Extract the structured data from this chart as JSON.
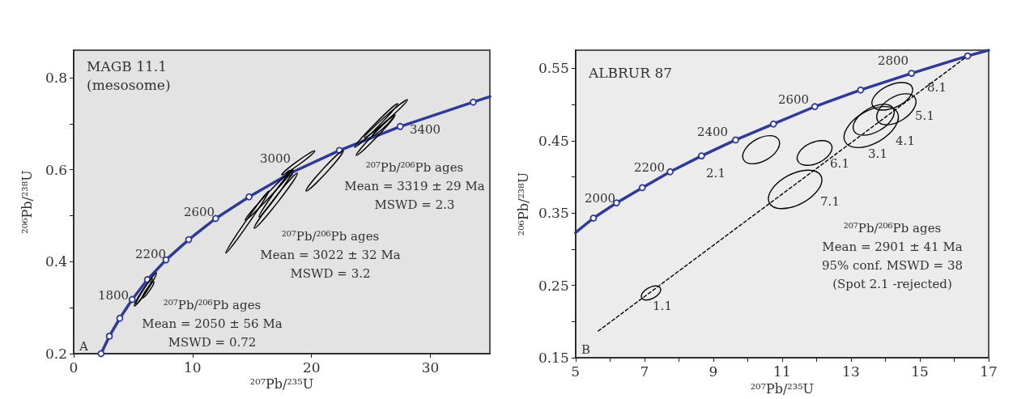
{
  "chart_data": [
    {
      "type": "line",
      "title": "MAGB 11.1",
      "subtitle": "(mesosome)",
      "xlabel": "²⁰⁷Pb/²³⁵U",
      "ylabel": "²⁰⁶Pb/²³⁸U",
      "xlim": [
        0,
        35
      ],
      "ylim": [
        0.2,
        0.86
      ],
      "xticks": [
        0,
        10,
        20,
        30
      ],
      "yticks": [
        0.2,
        {
          "value": 0.3,
          "label": null
        },
        0.4,
        {
          "value": 0.5,
          "label": null
        },
        0.6,
        {
          "value": 0.7,
          "label": null
        },
        0.8
      ],
      "grid": false,
      "series": [
        {
          "color": "#2e3a9a",
          "marker": "none",
          "x": [
            2.3,
            3.0,
            3.88,
            4.92,
            6.2,
            7.76,
            9.67,
            11.94,
            14.75,
            18.17,
            22.35,
            27.46,
            33.6,
            35.0
          ],
          "values": [
            0.2,
            0.238,
            0.277,
            0.318,
            0.361,
            0.404,
            0.448,
            0.494,
            0.541,
            0.592,
            0.642,
            0.694,
            0.747,
            0.759
          ]
        },
        {
          "type": "scatter",
          "color": "#2e3a9a",
          "marker": "circle",
          "x": [
            2.3,
            3.0,
            3.88,
            4.92,
            6.2,
            7.76,
            9.67,
            11.94,
            14.75,
            18.17,
            22.35,
            27.46,
            33.6
          ],
          "values": [
            0.2,
            0.238,
            0.277,
            0.318,
            0.361,
            0.404,
            0.448,
            0.494,
            0.541,
            0.592,
            0.642,
            0.694,
            0.747
          ]
        }
      ],
      "annotations": [
        "1800",
        "2200",
        "2600",
        "3000",
        "3400",
        "²⁰⁷Pb/²⁰⁶Pb ages\nMean = 2050 ± 56 Ma\nMSWD = 0.72",
        "²⁰⁷Pb/²⁰⁶Pb ages\nMean = 3022 ± 32 Ma\nMSWD = 3.2",
        "²⁰⁷Pb/²⁰⁶Pb ages\nMean = 3319 ± 29 Ma\nMSWD = 2.3",
        "A"
      ]
    },
    {
      "type": "line",
      "title": "ALBRUR 87",
      "xlabel": "²⁰⁷Pb/²³⁵U",
      "ylabel": "²⁰⁶Pb/²³⁸U",
      "xlim": [
        5,
        17
      ],
      "ylim": [
        0.15,
        0.575
      ],
      "xticks": [
        5,
        {
          "value": 6,
          "label": null
        },
        7,
        {
          "value": 8,
          "label": null
        },
        9,
        {
          "value": 10,
          "label": null
        },
        11,
        {
          "value": 12,
          "label": null
        },
        13,
        {
          "value": 14,
          "label": null
        },
        15,
        {
          "value": 16,
          "label": null
        },
        17
      ],
      "yticks": [
        0.15,
        {
          "value": 0.2,
          "label": null
        },
        0.25,
        {
          "value": 0.3,
          "label": null
        },
        0.35,
        {
          "value": 0.4,
          "label": null
        },
        0.45,
        {
          "value": 0.5,
          "label": null
        },
        0.55
      ],
      "grid": false,
      "series": [
        {
          "color": "#2e3a9a",
          "marker": "none",
          "x": [
            5.0,
            5.52,
            6.19,
            6.94,
            7.75,
            8.66,
            9.65,
            10.75,
            11.95,
            13.28,
            14.76,
            16.39,
            17.0
          ],
          "values": [
            0.323,
            0.343,
            0.364,
            0.385,
            0.407,
            0.429,
            0.451,
            0.473,
            0.497,
            0.52,
            0.543,
            0.567,
            0.575
          ]
        },
        {
          "type": "scatter",
          "color": "#2e3a9a",
          "marker": "circle",
          "x": [
            5.52,
            6.19,
            6.94,
            7.75,
            8.66,
            9.65,
            10.75,
            11.95,
            13.28,
            14.76,
            16.39
          ],
          "values": [
            0.343,
            0.364,
            0.385,
            0.407,
            0.429,
            0.451,
            0.473,
            0.497,
            0.52,
            0.543,
            0.567
          ]
        },
        {
          "color": "#000000",
          "marker": "none",
          "line_style": "dashed",
          "x": [
            5.66,
            16.39
          ],
          "values": [
            0.187,
            0.567
          ]
        }
      ],
      "annotations": [
        "2000",
        "2200",
        "2400",
        "2600",
        "2800",
        "1.1",
        "2.1",
        "6.1",
        "7.1",
        "3.1",
        "4.1",
        "5.1",
        "8.1",
        "²⁰⁷Pb/²⁰⁶Pb ages\nMean = 2901 ± 41 Ma\n95% conf. MSWD = 38\n(Spot 2.1 -rejected)",
        "B"
      ]
    }
  ]
}
